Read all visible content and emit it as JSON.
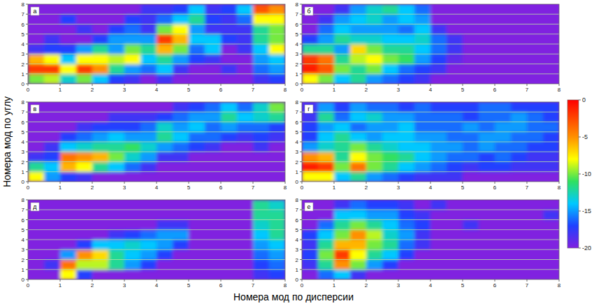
{
  "chart_data": [
    {
      "type": "heatmap",
      "title": "а",
      "xlim": [
        0,
        8
      ],
      "ylim": [
        0,
        8
      ],
      "xticks": [
        0,
        1,
        2,
        3,
        4,
        5,
        6,
        7,
        8
      ],
      "yticks": [
        0,
        1,
        2,
        3,
        4,
        5,
        6,
        7,
        8
      ],
      "grid": true,
      "cells": [
        [
          -10,
          -9,
          -13,
          -10,
          -14,
          -17,
          -18,
          -20,
          -18,
          -20,
          -20,
          -20,
          -20,
          -20,
          -18,
          -17
        ],
        [
          -2,
          -2,
          -8,
          -2,
          -5,
          -12,
          -15,
          -16,
          -14,
          -18,
          -20,
          -20,
          -18,
          -20,
          -16,
          -15
        ],
        [
          -6,
          -8,
          -14,
          -8,
          -8,
          -9,
          -8,
          -14,
          -12,
          -15,
          -17,
          -18,
          -20,
          -20,
          -15,
          -14
        ],
        [
          -18,
          -17,
          -17,
          -15,
          -12,
          -15,
          -10,
          -12,
          -6,
          -10,
          -16,
          -14,
          -20,
          -18,
          -14,
          -8
        ],
        [
          -20,
          -18,
          -20,
          -20,
          -17,
          -15,
          -15,
          -15,
          -2,
          -6,
          -14,
          -14,
          -17,
          -18,
          -12,
          -10
        ],
        [
          -20,
          -20,
          -20,
          -18,
          -20,
          -17,
          -16,
          -18,
          -10,
          -8,
          -15,
          -18,
          -18,
          -18,
          -12,
          -10
        ],
        [
          -20,
          -20,
          -17,
          -20,
          -20,
          -20,
          -17,
          -18,
          -16,
          -14,
          -12,
          -17,
          -18,
          -16,
          -8,
          -8
        ],
        [
          -20,
          -20,
          -20,
          -20,
          -20,
          -20,
          -20,
          -18,
          -18,
          -17,
          -14,
          -18,
          -17,
          -14,
          -3,
          -5
        ]
      ]
    },
    {
      "type": "heatmap",
      "title": "б",
      "xlim": [
        0,
        8
      ],
      "ylim": [
        0,
        8
      ],
      "xticks": [
        0,
        1,
        2,
        3,
        4,
        5,
        6,
        7,
        8
      ],
      "yticks": [
        0,
        1,
        2,
        3,
        4,
        5,
        6,
        7,
        8
      ],
      "grid": true,
      "cells": [
        [
          -8,
          -10,
          -14,
          -12,
          -15,
          -16,
          -17,
          -18,
          -20,
          -20,
          -20,
          -20,
          -20,
          -20,
          -20,
          -20
        ],
        [
          -1,
          -3,
          -10,
          -12,
          -10,
          -14,
          -16,
          -17,
          -18,
          -20,
          -20,
          -20,
          -20,
          -20,
          -20,
          -20
        ],
        [
          -2,
          -4,
          -12,
          -9,
          -8,
          -10,
          -11,
          -15,
          -17,
          -19,
          -20,
          -20,
          -20,
          -20,
          -20,
          -20
        ],
        [
          -12,
          -12,
          -15,
          -7,
          -10,
          -12,
          -12,
          -14,
          -16,
          -18,
          -20,
          -20,
          -20,
          -20,
          -20,
          -20
        ],
        [
          -17,
          -15,
          -12,
          -13,
          -13,
          -14,
          -14,
          -13,
          -16,
          -18,
          -20,
          -20,
          -20,
          -20,
          -20,
          -20
        ],
        [
          -20,
          -16,
          -14,
          -15,
          -15,
          -15,
          -16,
          -14,
          -18,
          -20,
          -20,
          -20,
          -20,
          -20,
          -20,
          -20
        ],
        [
          -20,
          -18,
          -15,
          -14,
          -13,
          -15,
          -14,
          -15,
          -20,
          -20,
          -20,
          -20,
          -20,
          -20,
          -20,
          -20
        ],
        [
          -20,
          -20,
          -18,
          -15,
          -13,
          -12,
          -14,
          -16,
          -20,
          -20,
          -20,
          -20,
          -20,
          -20,
          -20,
          -20
        ]
      ]
    },
    {
      "type": "heatmap",
      "title": "в",
      "xlim": [
        0,
        8
      ],
      "ylim": [
        0,
        8
      ],
      "xticks": [
        0,
        1,
        2,
        3,
        4,
        5,
        6,
        7,
        8
      ],
      "yticks": [
        0,
        1,
        2,
        3,
        4,
        5,
        6,
        7,
        8
      ],
      "grid": true,
      "cells": [
        [
          -8,
          -15,
          -17,
          -18,
          -20,
          -20,
          -20,
          -20,
          -20,
          -20,
          -20,
          -20,
          -20,
          -20,
          -20,
          -20
        ],
        [
          -12,
          -14,
          -6,
          -8,
          -12,
          -14,
          -16,
          -18,
          -20,
          -20,
          -20,
          -20,
          -20,
          -20,
          -20,
          -20
        ],
        [
          -18,
          -17,
          -4,
          -5,
          -6,
          -10,
          -13,
          -15,
          -18,
          -18,
          -20,
          -20,
          -20,
          -20,
          -20,
          -20
        ],
        [
          -20,
          -18,
          -14,
          -13,
          -12,
          -12,
          -11,
          -13,
          -15,
          -16,
          -17,
          -18,
          -20,
          -20,
          -18,
          -20
        ],
        [
          -20,
          -20,
          -17,
          -16,
          -15,
          -14,
          -15,
          -15,
          -12,
          -14,
          -16,
          -16,
          -17,
          -18,
          -17,
          -18
        ],
        [
          -20,
          -20,
          -20,
          -18,
          -17,
          -17,
          -17,
          -16,
          -13,
          -15,
          -14,
          -16,
          -15,
          -16,
          -16,
          -17
        ],
        [
          -20,
          -20,
          -20,
          -20,
          -20,
          -18,
          -18,
          -18,
          -17,
          -16,
          -15,
          -15,
          -12,
          -14,
          -13,
          -12
        ],
        [
          -20,
          -20,
          -20,
          -20,
          -20,
          -20,
          -20,
          -20,
          -20,
          -18,
          -17,
          -16,
          -14,
          -16,
          -13,
          -10
        ]
      ]
    },
    {
      "type": "heatmap",
      "title": "г",
      "xlim": [
        0,
        8
      ],
      "ylim": [
        0,
        8
      ],
      "xticks": [
        0,
        1,
        2,
        3,
        4,
        5,
        6,
        7,
        8
      ],
      "yticks": [
        0,
        1,
        2,
        3,
        4,
        5,
        6,
        7,
        8
      ],
      "grid": true,
      "cells": [
        [
          -8,
          -8,
          -14,
          -12,
          -15,
          -16,
          -17,
          -18,
          -18,
          -18,
          -20,
          -20,
          -20,
          -20,
          -20,
          -20
        ],
        [
          -1,
          -2,
          -10,
          -4,
          -10,
          -12,
          -14,
          -15,
          -16,
          -17,
          -18,
          -17,
          -17,
          -18,
          -18,
          -18
        ],
        [
          -5,
          -6,
          -12,
          -8,
          -10,
          -11,
          -12,
          -14,
          -15,
          -16,
          -16,
          -17,
          -16,
          -17,
          -18,
          -18
        ],
        [
          -15,
          -13,
          -12,
          -10,
          -12,
          -13,
          -14,
          -14,
          -15,
          -15,
          -16,
          -15,
          -16,
          -16,
          -17,
          -17
        ],
        [
          -17,
          -14,
          -12,
          -14,
          -15,
          -14,
          -14,
          -15,
          -15,
          -16,
          -16,
          -15,
          -15,
          -16,
          -16,
          -17
        ],
        [
          -17,
          -15,
          -14,
          -16,
          -15,
          -15,
          -14,
          -16,
          -16,
          -16,
          -15,
          -16,
          -15,
          -15,
          -16,
          -16
        ],
        [
          -18,
          -12,
          -16,
          -14,
          -13,
          -15,
          -15,
          -16,
          -16,
          -16,
          -17,
          -16,
          -16,
          -15,
          -16,
          -17
        ],
        [
          -18,
          -15,
          -17,
          -15,
          -16,
          -16,
          -17,
          -16,
          -17,
          -17,
          -17,
          -16,
          -16,
          -17,
          -17,
          -17
        ]
      ]
    },
    {
      "type": "heatmap",
      "title": "д",
      "xlim": [
        0,
        8
      ],
      "ylim": [
        0,
        8
      ],
      "xticks": [
        0,
        1,
        2,
        3,
        4,
        5,
        6,
        7,
        8
      ],
      "yticks": [
        0,
        1,
        2,
        3,
        4,
        5,
        6,
        7,
        8
      ],
      "grid": true,
      "cells": [
        [
          -20,
          -20,
          -8,
          -17,
          -20,
          -20,
          -20,
          -20,
          -20,
          -20,
          -20,
          -20,
          -20,
          -20,
          -18,
          -17
        ],
        [
          -20,
          -18,
          -4,
          -9,
          -9,
          -12,
          -15,
          -17,
          -20,
          -20,
          -20,
          -20,
          -20,
          -20,
          -17,
          -16
        ],
        [
          -20,
          -20,
          -15,
          -5,
          -7,
          -12,
          -14,
          -15,
          -17,
          -20,
          -20,
          -20,
          -20,
          -20,
          -16,
          -15
        ],
        [
          -20,
          -20,
          -20,
          -17,
          -14,
          -14,
          -13,
          -14,
          -15,
          -17,
          -20,
          -20,
          -20,
          -20,
          -15,
          -14
        ],
        [
          -20,
          -20,
          -20,
          -20,
          -20,
          -18,
          -17,
          -16,
          -15,
          -15,
          -20,
          -20,
          -20,
          -20,
          -14,
          -12
        ],
        [
          -20,
          -20,
          -20,
          -20,
          -20,
          -20,
          -20,
          -20,
          -18,
          -18,
          -20,
          -20,
          -20,
          -20,
          -13,
          -12
        ],
        [
          -20,
          -20,
          -20,
          -20,
          -20,
          -20,
          -20,
          -20,
          -20,
          -20,
          -20,
          -20,
          -20,
          -20,
          -12,
          -12
        ],
        [
          -20,
          -20,
          -20,
          -20,
          -20,
          -20,
          -20,
          -20,
          -20,
          -20,
          -20,
          -20,
          -20,
          -20,
          -12,
          -13
        ]
      ]
    },
    {
      "type": "heatmap",
      "title": "е",
      "xlim": [
        0,
        8
      ],
      "ylim": [
        0,
        8
      ],
      "xticks": [
        0,
        1,
        2,
        3,
        4,
        5,
        6,
        7,
        8
      ],
      "yticks": [
        0,
        1,
        2,
        3,
        4,
        5,
        6,
        7,
        8
      ],
      "grid": true,
      "cells": [
        [
          -20,
          -16,
          -14,
          -18,
          -20,
          -20,
          -20,
          -20,
          -20,
          -20,
          -20,
          -20,
          -20,
          -20,
          -20,
          -20
        ],
        [
          -18,
          -12,
          -5,
          -10,
          -15,
          -17,
          -20,
          -20,
          -20,
          -20,
          -20,
          -20,
          -20,
          -20,
          -20,
          -20
        ],
        [
          -17,
          -10,
          -2,
          -8,
          -12,
          -14,
          -17,
          -20,
          -20,
          -20,
          -20,
          -20,
          -20,
          -20,
          -20,
          -20
        ],
        [
          -18,
          -12,
          -6,
          -6,
          -10,
          -12,
          -16,
          -18,
          -20,
          -20,
          -20,
          -20,
          -20,
          -20,
          -20,
          -20
        ],
        [
          -17,
          -14,
          -10,
          -5,
          -9,
          -13,
          -15,
          -18,
          -20,
          -20,
          -20,
          -20,
          -20,
          -20,
          -20,
          -20
        ],
        [
          -20,
          -16,
          -12,
          -10,
          -12,
          -14,
          -16,
          -17,
          -20,
          -20,
          -18,
          -20,
          -20,
          -20,
          -20,
          -20
        ],
        [
          -20,
          -20,
          -14,
          -14,
          -15,
          -15,
          -17,
          -18,
          -20,
          -20,
          -20,
          -20,
          -20,
          -20,
          -20,
          -18
        ],
        [
          -20,
          -20,
          -18,
          -16,
          -17,
          -17,
          -18,
          -20,
          -18,
          -20,
          -20,
          -20,
          -20,
          -20,
          -20,
          -20
        ]
      ]
    }
  ],
  "xlabel": "Номера мод по дисперсии",
  "ylabel": "Номера мод по углу",
  "colorbar": {
    "range": [
      -20,
      0
    ],
    "ticks": [
      0,
      -5,
      -10,
      -15,
      -20
    ]
  }
}
